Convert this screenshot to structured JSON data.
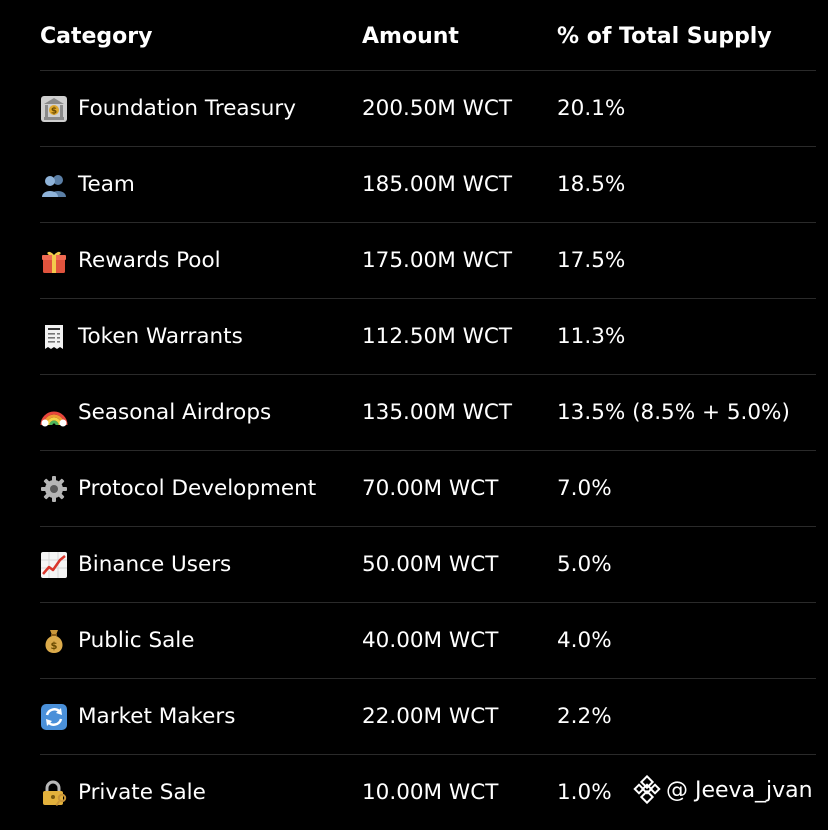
{
  "table": {
    "headers": {
      "category": "Category",
      "amount": "Amount",
      "percent": "% of Total Supply"
    },
    "rows": [
      {
        "icon": "bank-icon",
        "category": "Foundation Treasury",
        "amount": "200.50M WCT",
        "percent": "20.1%"
      },
      {
        "icon": "team-icon",
        "category": "Team",
        "amount": "185.00M WCT",
        "percent": "18.5%"
      },
      {
        "icon": "gift-icon",
        "category": "Rewards Pool",
        "amount": "175.00M WCT",
        "percent": "17.5%"
      },
      {
        "icon": "receipt-icon",
        "category": "Token Warrants",
        "amount": "112.50M WCT",
        "percent": "11.3%"
      },
      {
        "icon": "rainbow-icon",
        "category": "Seasonal Airdrops",
        "amount": "135.00M WCT",
        "percent": "13.5% (8.5% + 5.0%)"
      },
      {
        "icon": "gear-icon",
        "category": "Protocol Development",
        "amount": "70.00M WCT",
        "percent": "7.0%"
      },
      {
        "icon": "chart-up-icon",
        "category": "Binance Users",
        "amount": "50.00M WCT",
        "percent": "5.0%"
      },
      {
        "icon": "money-bag-icon",
        "category": "Public Sale",
        "amount": "40.00M WCT",
        "percent": "4.0%"
      },
      {
        "icon": "refresh-icon",
        "category": "Market Makers",
        "amount": "22.00M WCT",
        "percent": "2.2%"
      },
      {
        "icon": "lock-key-icon",
        "category": "Private Sale",
        "amount": "10.00M WCT",
        "percent": "1.0%"
      }
    ]
  },
  "watermark": {
    "icon": "binance-logo-icon",
    "handle": "@ Jeeva_jvan"
  },
  "colors": {
    "background": "#000000",
    "text": "#ffffff",
    "divider": "#2a2a2a"
  }
}
